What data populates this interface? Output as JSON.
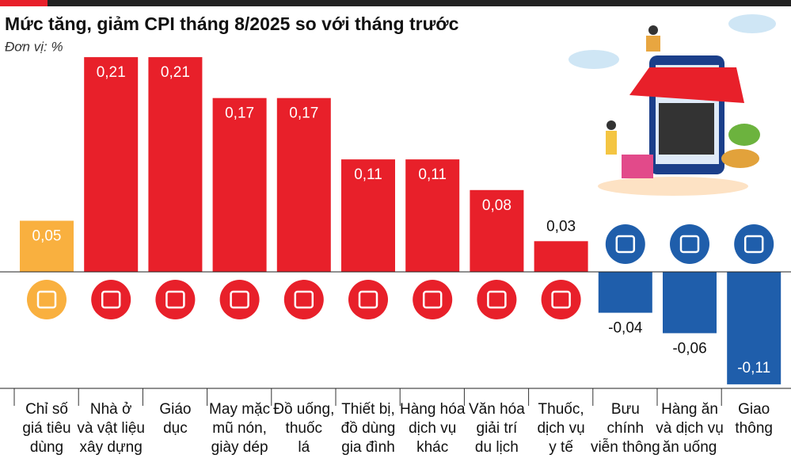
{
  "chart_data": {
    "type": "bar",
    "title": "Mức tăng, giảm CPI tháng 8/2025 so với tháng trước",
    "subtitle": "Đơn vị: %",
    "categories": [
      "Chỉ số\ngiá tiêu\ndùng",
      "Nhà ở\nvà vật liệu\nxây dựng",
      "Giáo\ndục",
      "May mặc\nmũ nón,\ngiày dép",
      "Đồ uống,\nthuốc\nlá",
      "Thiết bị,\nđồ dùng\ngia đình",
      "Hàng hóa\ndịch vụ\nkhác",
      "Văn hóa\ngiải trí\ndu lịch",
      "Thuốc,\ndịch vụ\ny tế",
      "Bưu\nchính\nviễn thông",
      "Hàng ăn\nvà dịch vụ\năn uống",
      "Giao\nthông"
    ],
    "values": [
      0.05,
      0.21,
      0.21,
      0.17,
      0.17,
      0.11,
      0.11,
      0.08,
      0.03,
      -0.04,
      -0.06,
      -0.11
    ],
    "value_labels": [
      "0,05",
      "0,21",
      "0,21",
      "0,17",
      "0,17",
      "0,11",
      "0,11",
      "0,08",
      "0,03",
      "-0,04",
      "-0,06",
      "-0,11"
    ],
    "colors": [
      "#f9b03f",
      "#e8202a",
      "#e8202a",
      "#e8202a",
      "#e8202a",
      "#e8202a",
      "#e8202a",
      "#e8202a",
      "#e8202a",
      "#1f5eab",
      "#1f5eab",
      "#1f5eab"
    ]
  }
}
